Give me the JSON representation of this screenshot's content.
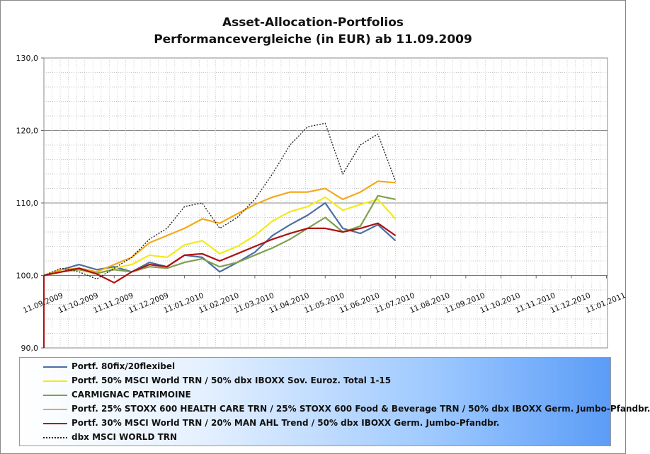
{
  "chart_data": {
    "type": "line",
    "title": "Asset-Allocation-Portfolios",
    "subtitle": "Performancevergleiche (in EUR) ab 11.09.2009",
    "ylim": [
      90,
      130
    ],
    "y_ticks": [
      "90,0",
      "100,0",
      "110,0",
      "120,0",
      "130,0"
    ],
    "x_ticks": [
      "11.09.2009",
      "11.10.2009",
      "11.11.2009",
      "11.12.2009",
      "11.01.2010",
      "11.02.2010",
      "11.03.2010",
      "11.04.2010",
      "11.05.2010",
      "11.06.2010",
      "11.07.2010",
      "11.08.2010",
      "11.09.2010",
      "11.10.2010",
      "11.11.2010",
      "11.12.2010",
      "11.01.2011"
    ],
    "grid": true,
    "legend_position": "bottom",
    "x": [
      "11.09.2009",
      "25.09.2009",
      "11.10.2009",
      "25.10.2009",
      "11.11.2009",
      "25.11.2009",
      "11.12.2009",
      "25.12.2009",
      "11.01.2010",
      "25.01.2010",
      "11.02.2010",
      "25.02.2010",
      "11.03.2010",
      "25.03.2010",
      "11.04.2010",
      "25.04.2010",
      "11.05.2010",
      "25.05.2010",
      "11.06.2010",
      "25.06.2010",
      "11.07.2010"
    ],
    "series": [
      {
        "name": "Portf. 80fix/20flexibel",
        "color": "#4a6fa5",
        "dash": false,
        "values": [
          100.0,
          100.8,
          101.5,
          100.8,
          101.2,
          100.5,
          101.8,
          101.2,
          102.8,
          102.5,
          100.5,
          101.8,
          103.2,
          105.5,
          107.0,
          108.3,
          110.0,
          106.5,
          105.8,
          107.0,
          104.8
        ]
      },
      {
        "name": "Portf. 50% MSCI World TRN / 50% dbx IBOXX Sov. Euroz. Total 1-15",
        "color": "#f2ea1a",
        "dash": false,
        "values": [
          100.0,
          100.5,
          100.8,
          100.2,
          101.0,
          101.5,
          102.8,
          102.5,
          104.2,
          104.8,
          103.0,
          104.0,
          105.5,
          107.5,
          108.8,
          109.5,
          110.8,
          109.0,
          109.8,
          110.5,
          107.8
        ]
      },
      {
        "name": "CARMIGNAC PATRIMOINE",
        "color": "#7f9f50",
        "dash": false,
        "values": [
          100.0,
          100.5,
          100.8,
          100.3,
          100.8,
          100.5,
          101.2,
          101.0,
          101.8,
          102.3,
          101.2,
          101.8,
          102.8,
          103.8,
          105.0,
          106.5,
          108.0,
          106.0,
          106.8,
          111.0,
          110.5
        ]
      },
      {
        "name": "Portf. 25% STOXX 600  HEALTH CARE TRN / 25% STOXX 600  Food & Beverage TRN / 50% dbx IBOXX Germ. Jumbo-Pfandbr.",
        "color": "#f5a818",
        "dash": false,
        "values": [
          100.0,
          100.8,
          101.0,
          100.5,
          101.5,
          102.5,
          104.5,
          105.5,
          106.5,
          107.8,
          107.2,
          108.5,
          109.8,
          110.8,
          111.5,
          111.5,
          112.0,
          110.5,
          111.5,
          113.0,
          112.8
        ]
      },
      {
        "name": "Portf. 30% MSCI World TRN / 20% MAN AHL Trend / 50% dbx IBOXX Germ. Jumbo-Pfandbr.",
        "color": "#b01010",
        "dash": false,
        "values": [
          100.0,
          100.5,
          101.0,
          100.2,
          99.0,
          100.5,
          101.5,
          101.2,
          102.8,
          103.0,
          102.0,
          103.0,
          104.0,
          105.0,
          105.8,
          106.5,
          106.5,
          106.0,
          106.5,
          107.2,
          105.5
        ]
      },
      {
        "name": "dbx MSCI WORLD TRN",
        "color": "#222222",
        "dash": true,
        "values": [
          100.0,
          101.0,
          100.5,
          99.5,
          101.0,
          102.5,
          105.0,
          106.5,
          109.5,
          110.0,
          106.5,
          108.0,
          110.5,
          114.0,
          118.0,
          120.5,
          121.0,
          114.0,
          118.0,
          119.5,
          113.0
        ]
      }
    ]
  }
}
